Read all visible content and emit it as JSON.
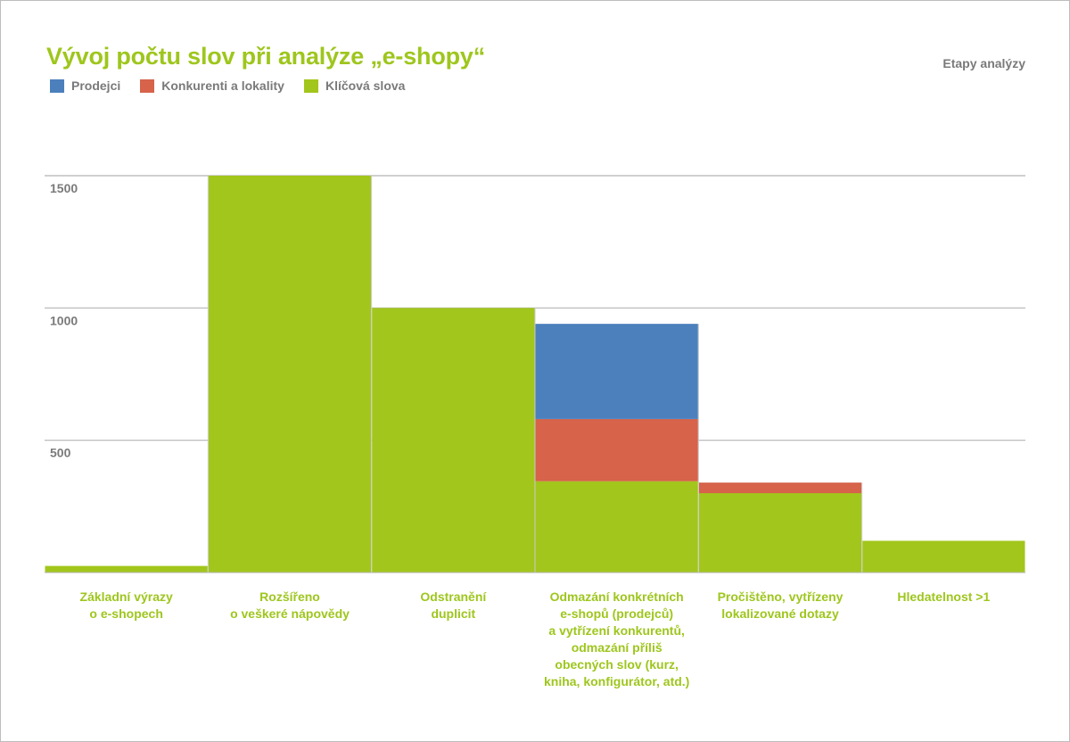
{
  "colors": {
    "title": "#9ec61d",
    "axis_text": "#7a7a7a",
    "grid": "#b5b5b5"
  },
  "chart_data": {
    "type": "bar",
    "stacked": true,
    "title": "Vývoj počtu slov při analýze „e-shopy“",
    "subtitle": "Etapy analýzy",
    "ylim": [
      0,
      1500
    ],
    "yticks": [
      500,
      1000,
      1500
    ],
    "grid": true,
    "legend_position": "top-left",
    "categories": [
      [
        "Základní výrazy",
        "o e-shopech"
      ],
      [
        "Rozšířeno",
        "o veškeré nápovědy"
      ],
      [
        "Odstranění",
        "duplicit"
      ],
      [
        "Odmazání konkrétních",
        "e-shopů (prodejců)",
        "a vytřízení konkurentů,",
        "odmazání příliš",
        "obecných slov (kurz,",
        "kniha, konfigurátor, atd.)"
      ],
      [
        "Pročištěno, vytřízeny",
        "lokalizované dotazy"
      ],
      [
        "Hledatelnost >1"
      ]
    ],
    "series": [
      {
        "name": "Klíčová slova",
        "color": "#a2c61c",
        "values": [
          25,
          1500,
          1000,
          345,
          300,
          120
        ]
      },
      {
        "name": "Konkurenti a lokality",
        "color": "#d6634a",
        "values": [
          0,
          0,
          0,
          235,
          40,
          0
        ]
      },
      {
        "name": "Prodejci",
        "color": "#4c80bd",
        "values": [
          0,
          0,
          0,
          360,
          0,
          0
        ]
      }
    ],
    "legend_order": [
      "Prodejci",
      "Konkurenti a lokality",
      "Klíčová slova"
    ]
  }
}
